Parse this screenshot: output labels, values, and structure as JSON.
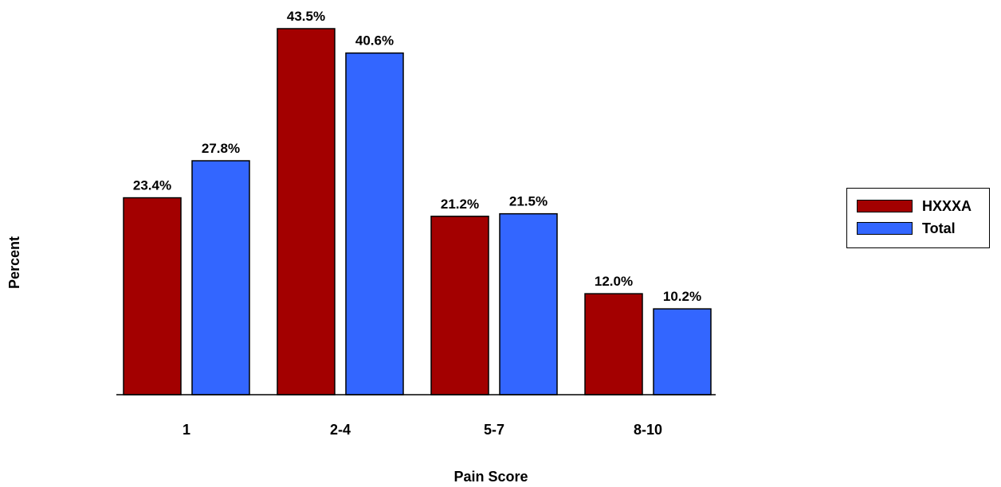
{
  "chart_data": {
    "type": "bar",
    "title": "",
    "xlabel": "Pain Score",
    "ylabel": "Percent",
    "categories": [
      "1",
      "2-4",
      "5-7",
      "8-10"
    ],
    "series": [
      {
        "name": "HXXXA",
        "color": "#a30000",
        "values": [
          23.4,
          43.5,
          21.2,
          12.0
        ],
        "labels": [
          "23.4%",
          "43.5%",
          "21.2%",
          "12.0%"
        ]
      },
      {
        "name": "Total",
        "color": "#3366ff",
        "values": [
          27.8,
          40.6,
          21.5,
          10.2
        ],
        "labels": [
          "27.8%",
          "40.6%",
          "21.5%",
          "10.2%"
        ]
      }
    ],
    "ylim": [
      0,
      43.5
    ],
    "grid": false,
    "legend_position": "right"
  }
}
